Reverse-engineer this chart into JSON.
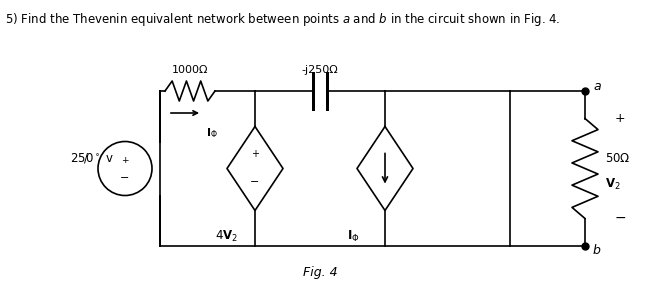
{
  "background_color": "#ffffff",
  "line_color": "#000000",
  "fig_size": [
    6.47,
    2.91
  ],
  "dpi": 100,
  "title": "5) Find the Thevenin equivalent network between points $\\it{a}$ and $\\it{b}$ in the circuit shown in Fig. 4.",
  "fig_label": "Fig. 4",
  "resistor_label": "1000Ω",
  "capacitor_label": "-j250Ω",
  "resistor50_label": "50Ω",
  "node_a": "a",
  "node_b": "b"
}
